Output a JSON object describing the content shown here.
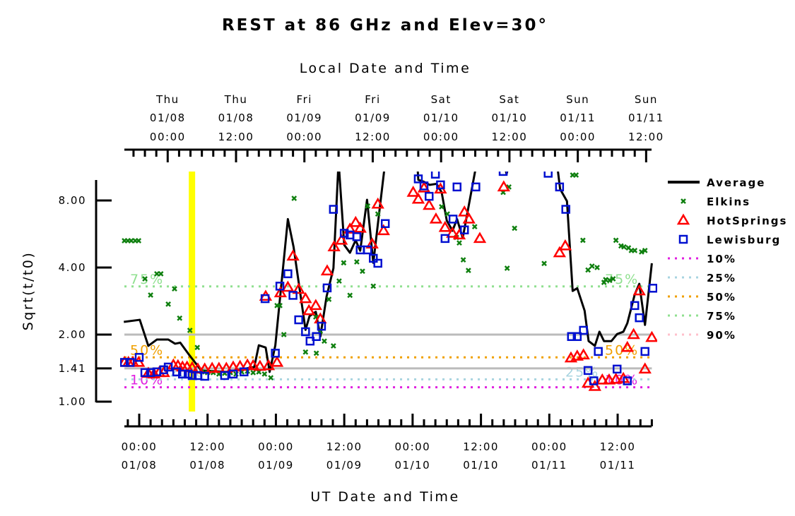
{
  "chart_data": {
    "type": "scatter",
    "title": "REST at 86 GHz and Elev=30°",
    "xlabel": "UT Date and Time",
    "x2label": "Local Date and Time",
    "ylabel": "Sqrt(t/t0)",
    "x_units": "hours since 01/08 00:00 UT",
    "xlim": [
      -2.6,
      90
    ],
    "ylim": [
      1.0,
      10.8
    ],
    "yscale": "log",
    "yticks": [
      {
        "value": 1.0,
        "label": "1.00"
      },
      {
        "value": 1.41,
        "label": "1.41"
      },
      {
        "value": 2.0,
        "label": "2.00"
      },
      {
        "value": 4.0,
        "label": "4.00"
      },
      {
        "value": 8.0,
        "label": "8.00"
      }
    ],
    "reference_lines": [
      1.41,
      2.0
    ],
    "highlight_band_hour": 9.2,
    "bottom_ticks": [
      {
        "hour": 0,
        "time": "00:00",
        "date": "01/08"
      },
      {
        "hour": 12,
        "time": "12:00",
        "date": "01/08"
      },
      {
        "hour": 24,
        "time": "00:00",
        "date": "01/09"
      },
      {
        "hour": 36,
        "time": "12:00",
        "date": "01/09"
      },
      {
        "hour": 48,
        "time": "00:00",
        "date": "01/10"
      },
      {
        "hour": 60,
        "time": "12:00",
        "date": "01/10"
      },
      {
        "hour": 72,
        "time": "00:00",
        "date": "01/11"
      },
      {
        "hour": 84,
        "time": "12:00",
        "date": "01/11"
      }
    ],
    "top_ticks": [
      {
        "hour": 5,
        "day": "Thu",
        "date": "01/08",
        "time": "00:00"
      },
      {
        "hour": 17,
        "day": "Thu",
        "date": "01/08",
        "time": "12:00"
      },
      {
        "hour": 29,
        "day": "Fri",
        "date": "01/09",
        "time": "00:00"
      },
      {
        "hour": 41,
        "day": "Fri",
        "date": "01/09",
        "time": "12:00"
      },
      {
        "hour": 53,
        "day": "Sat",
        "date": "01/10",
        "time": "00:00"
      },
      {
        "hour": 65,
        "day": "Sat",
        "date": "01/10",
        "time": "12:00"
      },
      {
        "hour": 77,
        "day": "Sun",
        "date": "01/11",
        "time": "00:00"
      },
      {
        "hour": 89,
        "day": "Sun",
        "date": "01/11",
        "time": "12:00"
      }
    ],
    "percentiles": [
      {
        "name": "10%",
        "value": 1.16,
        "color": "#e020e0"
      },
      {
        "name": "25%",
        "value": 1.26,
        "color": "#a8d4e0"
      },
      {
        "name": "50%",
        "value": 1.58,
        "color": "#f0a000"
      },
      {
        "name": "75%",
        "value": 3.29,
        "color": "#90e090"
      },
      {
        "name": "90%",
        "value": null,
        "color": "#ffc0cb"
      }
    ],
    "series": [
      {
        "name": "Average",
        "kind": "line",
        "color": "#000000",
        "x": [
          -2.7,
          0.1,
          1.6,
          3.1,
          5.1,
          6.3,
          7.2,
          8.7,
          10.9,
          15.3,
          20.2,
          21.0,
          22.2,
          22.9,
          23.9,
          26.1,
          27.1,
          29.2,
          29.9,
          31.0,
          31.8,
          32.9,
          34.1,
          35.0,
          36.0,
          37.0,
          38.0,
          38.8,
          40.0,
          41.1,
          43.2,
          46,
          48.8,
          49.0,
          50.0,
          51.0,
          52.2,
          53.1,
          54.0,
          55.0,
          55.8,
          56.8,
          59.3,
          64.0,
          64.5,
          65,
          73.3,
          73.9,
          75.1,
          76.1,
          76.9,
          78.2,
          78.9,
          80.0,
          80.8,
          81.6,
          82.9,
          83.9,
          85.0,
          85.7,
          87.0,
          87.8,
          88.8,
          90.0
        ],
        "y": [
          2.28,
          2.33,
          1.78,
          1.9,
          1.9,
          1.82,
          1.84,
          1.63,
          1.38,
          1.36,
          1.43,
          1.79,
          1.75,
          1.36,
          1.79,
          6.6,
          4.95,
          2.1,
          2.42,
          2.53,
          1.96,
          2.97,
          3.97,
          12,
          5.05,
          4.66,
          5.3,
          4.76,
          8.06,
          4.2,
          12,
          12,
          12,
          9.9,
          9.7,
          9.4,
          9.5,
          8.7,
          6.5,
          5.85,
          6.6,
          5.43,
          12,
          12,
          10.5,
          12,
          12,
          9.0,
          7.94,
          3.14,
          3.23,
          2.56,
          1.87,
          1.78,
          2.06,
          1.87,
          1.87,
          2.01,
          2.06,
          2.25,
          3.03,
          3.38,
          2.21,
          4.18
        ]
      },
      {
        "name": "Elkins",
        "kind": "x",
        "color": "#108010",
        "x": [
          -2.6,
          -2.0,
          -1.4,
          -0.7,
          -0.1,
          1.0,
          2.0,
          3.1,
          3.8,
          5.1,
          6.2,
          7.1,
          8.9,
          10.2,
          11,
          12,
          13,
          14,
          15,
          16,
          17,
          18,
          19,
          20,
          21,
          22,
          23.1,
          24.2,
          24.7,
          25.4,
          27.2,
          29.2,
          31.0,
          31.1,
          31.8,
          32.5,
          33.3,
          34.1,
          35.1,
          35.9,
          37.0,
          38.2,
          39.2,
          40.1,
          41.1,
          41.9,
          53.1,
          54.1,
          55.7,
          56.2,
          56.9,
          57.8,
          58.9,
          63.9,
          64.9,
          64.6,
          65.9,
          71.1,
          76.1,
          76.7,
          77.9,
          78.8,
          79.5,
          80.4,
          81.6,
          81.9,
          82.6,
          83.2,
          83.7,
          84.6,
          85.1,
          85.9,
          86.4,
          87.0,
          88.2,
          88.8
        ],
        "y": [
          5.28,
          5.28,
          5.28,
          5.28,
          5.28,
          3.56,
          3.01,
          3.75,
          3.75,
          2.74,
          3.21,
          2.37,
          2.09,
          1.75,
          1.36,
          1.35,
          1.35,
          1.33,
          1.34,
          1.35,
          1.33,
          1.36,
          1.37,
          1.35,
          1.36,
          1.33,
          1.28,
          2.7,
          2.7,
          2.0,
          8.18,
          1.67,
          2.4,
          1.65,
          2.07,
          1.87,
          2.88,
          1.78,
          3.48,
          4.2,
          3.0,
          4.24,
          3.85,
          7.55,
          3.3,
          6.96,
          7.5,
          6.96,
          5.46,
          5.16,
          4.33,
          3.88,
          6.1,
          8.7,
          9.2,
          3.97,
          6.0,
          4.17,
          10.4,
          10.4,
          5.3,
          3.9,
          4.06,
          4.0,
          3.43,
          3.53,
          3.5,
          3.56,
          5.3,
          5.0,
          4.95,
          4.9,
          4.77,
          4.77,
          4.7,
          4.77
        ]
      },
      {
        "name": "HotSprings",
        "kind": "triangle",
        "color": "#ff0000",
        "x": [
          -2.6,
          -1.9,
          -1.1,
          -0.1,
          1.6,
          2.6,
          3.5,
          4.3,
          6.0,
          6.8,
          7.6,
          8.4,
          9.3,
          10.3,
          11.5,
          12.8,
          14.0,
          15.3,
          16.5,
          17.7,
          19.0,
          20.0,
          21.2,
          22.2,
          22.7,
          24.2,
          24.8,
          26.1,
          27.0,
          28.0,
          29.2,
          29.8,
          31.0,
          31.8,
          33.0,
          34.2,
          35.5,
          37.0,
          38.0,
          38.8,
          40.9,
          41.9,
          42.9,
          48.1,
          49.0,
          50.0,
          50.9,
          52.1,
          52.9,
          53.7,
          55.0,
          56.2,
          57.1,
          57.9,
          59.8,
          64.0,
          73.8,
          74.8,
          75.8,
          76.9,
          78.0,
          78.8,
          80.0,
          81.3,
          82.5,
          83.7,
          85.0,
          85.7,
          86.8,
          87.8,
          88.8,
          90.0
        ],
        "y": [
          1.5,
          1.5,
          1.5,
          1.5,
          1.34,
          1.33,
          1.35,
          1.35,
          1.46,
          1.45,
          1.43,
          1.43,
          1.42,
          1.4,
          1.4,
          1.41,
          1.41,
          1.41,
          1.43,
          1.44,
          1.46,
          1.45,
          1.44,
          2.97,
          1.45,
          1.5,
          3.08,
          3.26,
          4.5,
          3.19,
          2.9,
          2.56,
          2.7,
          2.35,
          3.86,
          4.95,
          5.3,
          5.95,
          6.37,
          6.0,
          5.1,
          7.7,
          5.85,
          8.7,
          8.1,
          9.1,
          7.6,
          6.6,
          9.0,
          6.05,
          5.7,
          5.6,
          7.1,
          6.6,
          5.4,
          9.2,
          4.66,
          5.0,
          1.57,
          1.6,
          1.62,
          1.21,
          1.17,
          1.25,
          1.25,
          1.26,
          1.27,
          1.75,
          2.0,
          3.14,
          1.4,
          1.94
        ]
      },
      {
        "name": "Lewisburg",
        "kind": "square",
        "color": "#0010d0",
        "x": [
          -2.6,
          -1.6,
          0,
          1.0,
          2.0,
          3.1,
          4.3,
          5.1,
          6.6,
          7.6,
          8.6,
          9.3,
          10.3,
          11.5,
          15.0,
          16.5,
          18.4,
          22.1,
          23.9,
          24.7,
          26.1,
          27.0,
          28.0,
          29.2,
          30.0,
          31.1,
          32.0,
          33.0,
          34.1,
          36.0,
          37.0,
          38.2,
          38.8,
          40.1,
          41.1,
          41.9,
          43.2,
          49.0,
          50.0,
          50.9,
          52.0,
          52.9,
          53.7,
          55.1,
          55.8,
          57.1,
          59.1,
          63.9,
          71.8,
          73.8,
          74.9,
          75.9,
          76.9,
          78.0,
          78.8,
          79.8,
          80.6,
          83.9,
          85.7,
          87.0,
          87.8,
          88.8,
          90.2
        ],
        "y": [
          1.5,
          1.5,
          1.58,
          1.35,
          1.35,
          1.36,
          1.39,
          1.43,
          1.36,
          1.33,
          1.33,
          1.31,
          1.31,
          1.3,
          1.31,
          1.33,
          1.36,
          2.9,
          1.65,
          3.3,
          3.75,
          3.0,
          2.33,
          2.06,
          1.87,
          1.96,
          2.18,
          3.24,
          7.3,
          5.7,
          5.6,
          5.5,
          4.8,
          4.8,
          4.4,
          4.18,
          6.3,
          10.0,
          9.3,
          8.35,
          10.5,
          9.4,
          5.4,
          6.6,
          9.2,
          5.9,
          9.2,
          10.8,
          10.6,
          9.2,
          7.3,
          1.96,
          1.96,
          2.09,
          1.38,
          1.24,
          1.68,
          1.4,
          1.24,
          2.7,
          2.38,
          1.68,
          3.23
        ]
      }
    ]
  }
}
